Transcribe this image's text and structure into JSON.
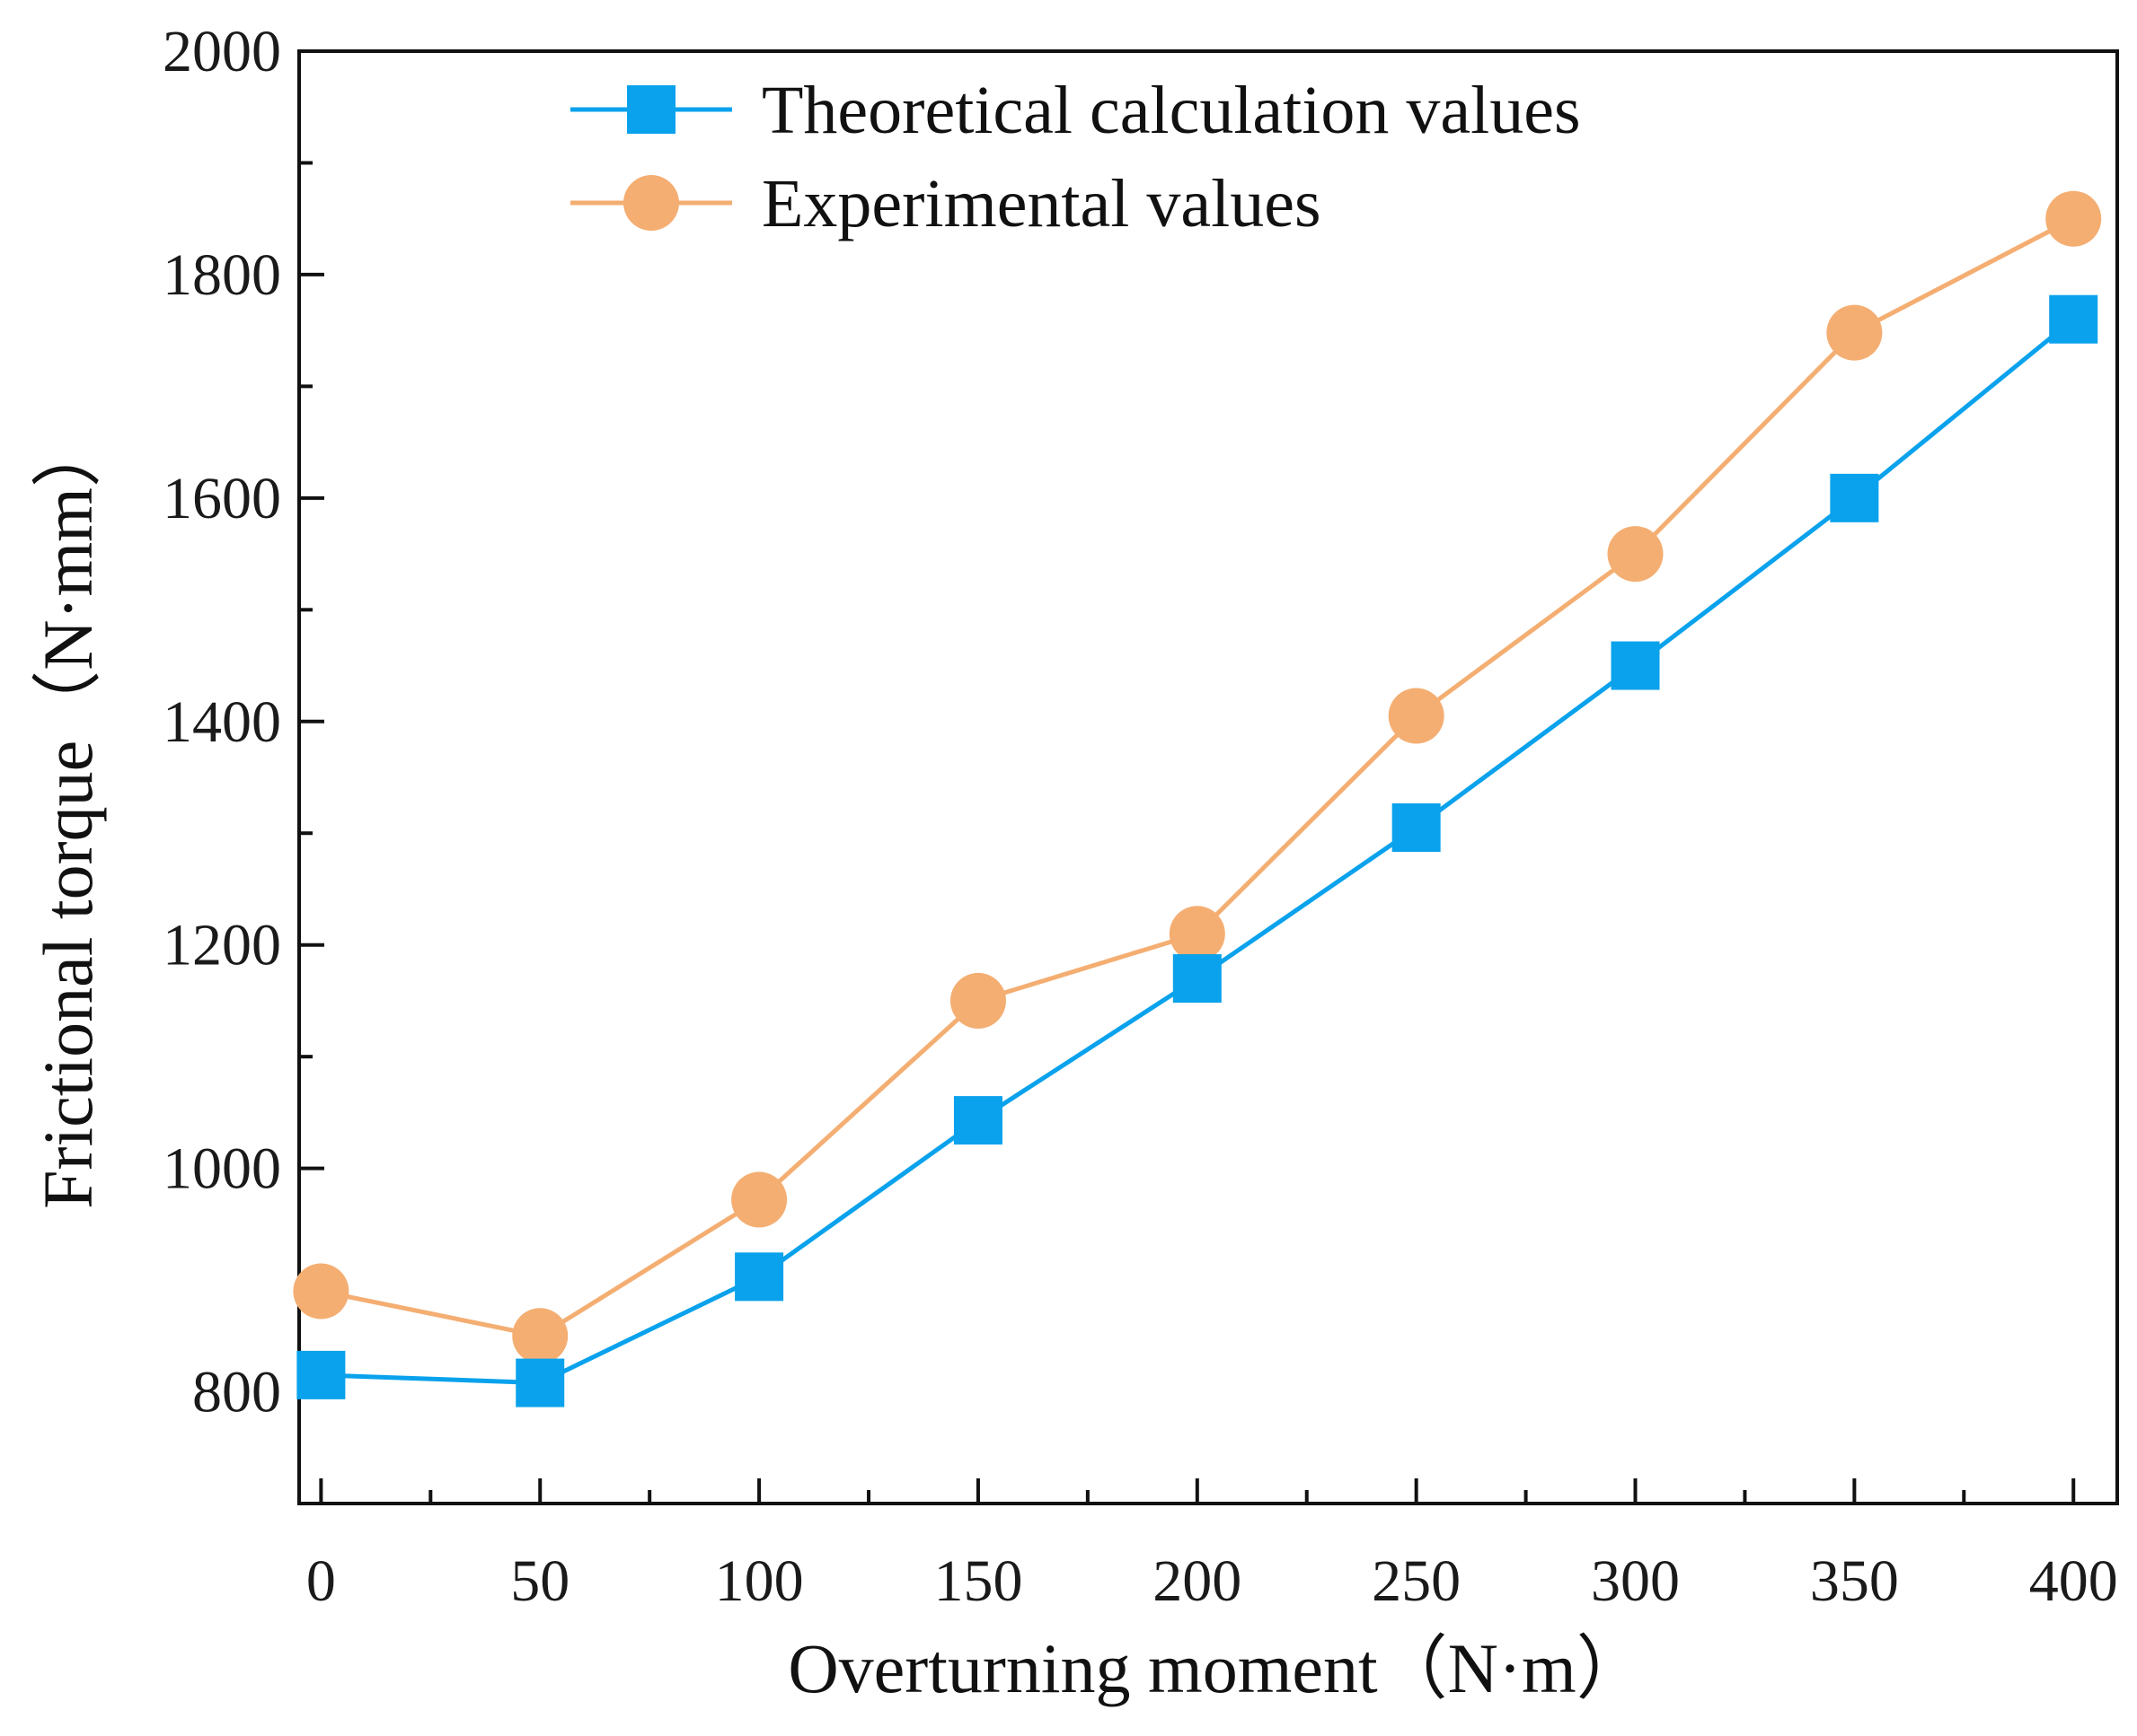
{
  "chart_data": {
    "type": "line",
    "title": "",
    "xlabel": "Overturning moment（N·m）",
    "ylabel": "Frictional torque（N·mm）",
    "xlim": [
      -5,
      410
    ],
    "ylim": [
      700,
      2000
    ],
    "x_ticks": [
      0,
      50,
      100,
      150,
      200,
      250,
      300,
      350,
      400
    ],
    "x_minor_ticks": [
      25,
      75,
      125,
      175,
      225,
      275,
      325,
      375
    ],
    "y_ticks": [
      800,
      1000,
      1200,
      1400,
      1600,
      1800,
      2000
    ],
    "y_minor_ticks": [
      900,
      1100,
      1300,
      1500,
      1700,
      1900
    ],
    "grid": false,
    "legend_position": "top-center",
    "series": [
      {
        "name": "Theoretical calculation values",
        "marker": "square",
        "color": "#0aa2ec",
        "x": [
          0,
          50,
          100,
          150,
          200,
          250,
          300,
          350,
          400
        ],
        "y": [
          815,
          808,
          903,
          1043,
          1170,
          1305,
          1450,
          1600,
          1760
        ]
      },
      {
        "name": "Experimental values",
        "marker": "circle",
        "color": "#f4ae72",
        "x": [
          0,
          50,
          100,
          150,
          200,
          250,
          300,
          350,
          400
        ],
        "y": [
          890,
          850,
          972,
          1150,
          1210,
          1405,
          1550,
          1748,
          1850
        ]
      }
    ]
  }
}
